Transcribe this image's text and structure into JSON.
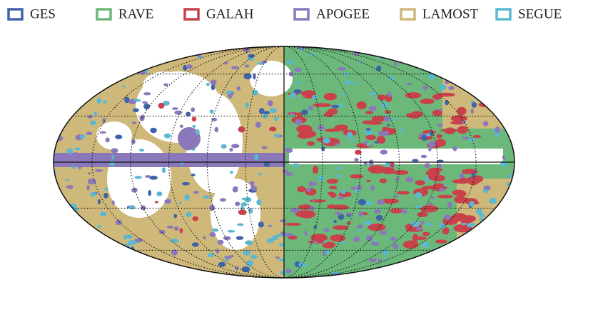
{
  "legend": {
    "items": [
      {
        "name": "GES",
        "color": "#3f63a8"
      },
      {
        "name": "RAVE",
        "color": "#6bb87a"
      },
      {
        "name": "GALAH",
        "color": "#c8414b"
      },
      {
        "name": "APOGEE",
        "color": "#8a78bb"
      },
      {
        "name": "LAMOST",
        "color": "#cfb97a"
      },
      {
        "name": "SEGUE",
        "color": "#5bb8d0"
      }
    ]
  }
}
